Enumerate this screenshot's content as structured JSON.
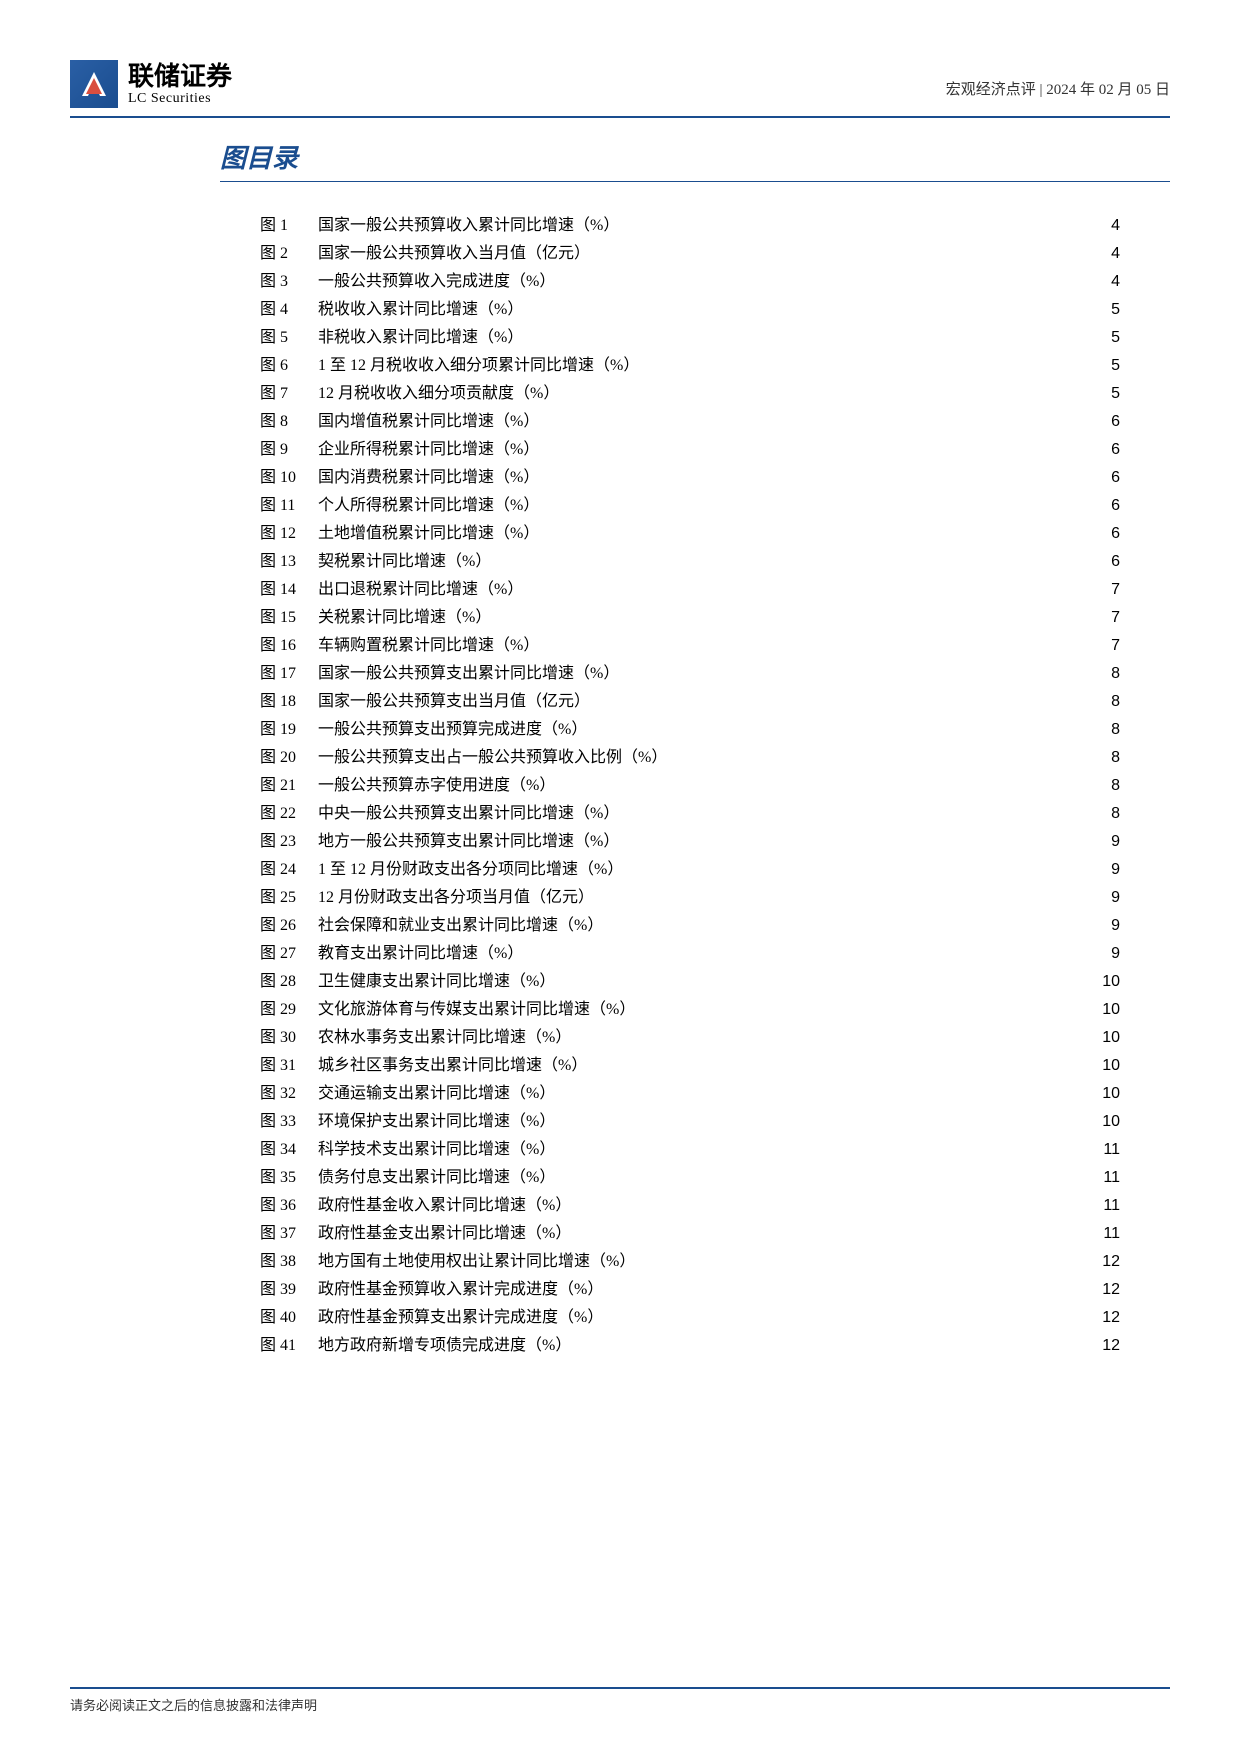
{
  "header": {
    "logo_cn": "联储证券",
    "logo_en": "LC Securities",
    "category": "宏观经济点评",
    "date": "2024 年 02 月 05 日"
  },
  "section_title": "图目录",
  "toc": [
    {
      "label": "图 1",
      "title": "国家一般公共预算收入累计同比增速（%）",
      "page": "4"
    },
    {
      "label": "图 2",
      "title": "国家一般公共预算收入当月值（亿元）",
      "page": "4"
    },
    {
      "label": "图 3",
      "title": "一般公共预算收入完成进度（%）",
      "page": "4"
    },
    {
      "label": "图 4",
      "title": "税收收入累计同比增速（%）",
      "page": "5"
    },
    {
      "label": "图 5",
      "title": "非税收入累计同比增速（%）",
      "page": "5"
    },
    {
      "label": "图 6",
      "title": "1 至 12 月税收收入细分项累计同比增速（%）",
      "page": "5"
    },
    {
      "label": "图 7",
      "title": "12 月税收收入细分项贡献度（%）",
      "page": "5"
    },
    {
      "label": "图 8",
      "title": "国内增值税累计同比增速（%）",
      "page": "6"
    },
    {
      "label": "图 9",
      "title": "企业所得税累计同比增速（%）",
      "page": "6"
    },
    {
      "label": "图 10",
      "title": "国内消费税累计同比增速（%）",
      "page": "6"
    },
    {
      "label": "图 11",
      "title": "个人所得税累计同比增速（%）",
      "page": "6"
    },
    {
      "label": "图 12",
      "title": "土地增值税累计同比增速（%）",
      "page": "6"
    },
    {
      "label": "图 13",
      "title": "契税累计同比增速（%）",
      "page": "6"
    },
    {
      "label": "图 14",
      "title": "出口退税累计同比增速（%）",
      "page": "7"
    },
    {
      "label": "图 15",
      "title": "关税累计同比增速（%）",
      "page": "7"
    },
    {
      "label": "图 16",
      "title": "车辆购置税累计同比增速（%）",
      "page": "7"
    },
    {
      "label": "图 17",
      "title": "国家一般公共预算支出累计同比增速（%）",
      "page": "8"
    },
    {
      "label": "图 18",
      "title": "国家一般公共预算支出当月值（亿元）",
      "page": "8"
    },
    {
      "label": "图 19",
      "title": "一般公共预算支出预算完成进度（%）",
      "page": "8"
    },
    {
      "label": "图 20",
      "title": "一般公共预算支出占一般公共预算收入比例（%）",
      "page": "8"
    },
    {
      "label": "图 21",
      "title": "一般公共预算赤字使用进度（%）",
      "page": "8"
    },
    {
      "label": "图 22",
      "title": "中央一般公共预算支出累计同比增速（%）",
      "page": "8"
    },
    {
      "label": "图 23",
      "title": "地方一般公共预算支出累计同比增速（%）",
      "page": "9"
    },
    {
      "label": "图 24",
      "title": "1 至 12 月份财政支出各分项同比增速（%）",
      "page": "9"
    },
    {
      "label": "图 25",
      "title": "12 月份财政支出各分项当月值（亿元）",
      "page": "9"
    },
    {
      "label": "图 26",
      "title": "社会保障和就业支出累计同比增速（%）",
      "page": "9"
    },
    {
      "label": "图 27",
      "title": "教育支出累计同比增速（%）",
      "page": "9"
    },
    {
      "label": "图 28",
      "title": "卫生健康支出累计同比增速（%）",
      "page": "10"
    },
    {
      "label": "图 29",
      "title": "文化旅游体育与传媒支出累计同比增速（%）",
      "page": "10"
    },
    {
      "label": "图 30",
      "title": "农林水事务支出累计同比增速（%）",
      "page": "10"
    },
    {
      "label": "图 31",
      "title": "城乡社区事务支出累计同比增速（%）",
      "page": "10"
    },
    {
      "label": "图 32",
      "title": "交通运输支出累计同比增速（%）",
      "page": "10"
    },
    {
      "label": "图 33",
      "title": "环境保护支出累计同比增速（%）",
      "page": "10"
    },
    {
      "label": "图 34",
      "title": "科学技术支出累计同比增速（%）",
      "page": "11"
    },
    {
      "label": "图 35",
      "title": "债务付息支出累计同比增速（%）",
      "page": "11"
    },
    {
      "label": "图 36",
      "title": "政府性基金收入累计同比增速（%）",
      "page": "11"
    },
    {
      "label": "图 37",
      "title": "政府性基金支出累计同比增速（%）",
      "page": "11"
    },
    {
      "label": "图 38",
      "title": "地方国有土地使用权出让累计同比增速（%）",
      "page": "12"
    },
    {
      "label": "图 39",
      "title": "政府性基金预算收入累计完成进度（%）",
      "page": "12"
    },
    {
      "label": "图 40",
      "title": "政府性基金预算支出累计完成进度（%）",
      "page": "12"
    },
    {
      "label": "图 41",
      "title": "地方政府新增专项债完成进度（%）",
      "page": "12"
    }
  ],
  "footer": "请务必阅读正文之后的信息披露和法律声明",
  "colors": {
    "brand_blue": "#1a4d8f",
    "text": "#000000",
    "background": "#ffffff"
  }
}
